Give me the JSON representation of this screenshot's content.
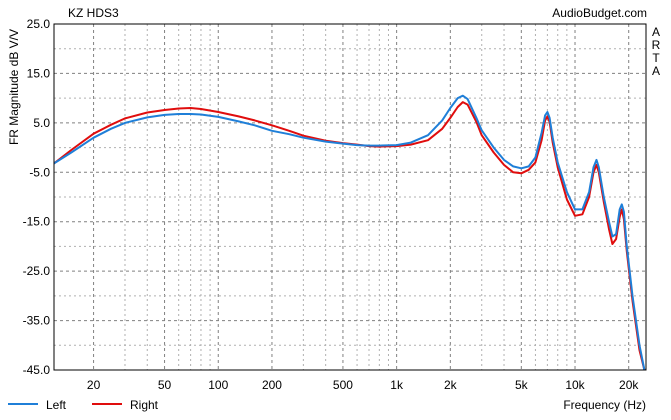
{
  "header": {
    "title": "KZ HDS3",
    "source": "AudioBudget.com",
    "side_label": [
      "A",
      "R",
      "T",
      "A"
    ]
  },
  "chart_data": {
    "type": "line",
    "title": "KZ HDS3",
    "xlabel": "Frequency (Hz)",
    "ylabel": "FR Magnitude dB V/V",
    "x_scale": "log",
    "xlim": [
      12,
      25000
    ],
    "ylim": [
      -45,
      25
    ],
    "grid": true,
    "legend_position": "bottom-left",
    "x_ticks": [
      {
        "value": 20,
        "label": "20"
      },
      {
        "value": 50,
        "label": "50"
      },
      {
        "value": 100,
        "label": "100"
      },
      {
        "value": 200,
        "label": "200"
      },
      {
        "value": 500,
        "label": "500"
      },
      {
        "value": 1000,
        "label": "1k"
      },
      {
        "value": 2000,
        "label": "2k"
      },
      {
        "value": 5000,
        "label": "5k"
      },
      {
        "value": 10000,
        "label": "10k"
      },
      {
        "value": 20000,
        "label": "20k"
      }
    ],
    "y_ticks": [
      {
        "value": 25,
        "label": "25.0"
      },
      {
        "value": 15,
        "label": "15.0"
      },
      {
        "value": 5,
        "label": "5.0"
      },
      {
        "value": -5,
        "label": "-5.0"
      },
      {
        "value": -15,
        "label": "-15.0"
      },
      {
        "value": -25,
        "label": "-25.0"
      },
      {
        "value": -35,
        "label": "-35.0"
      },
      {
        "value": -45,
        "label": "-45.0"
      }
    ],
    "series": [
      {
        "name": "Left",
        "color": "#1f7fd8",
        "points": [
          [
            12,
            -3.2
          ],
          [
            15,
            -1.0
          ],
          [
            20,
            2.0
          ],
          [
            25,
            3.8
          ],
          [
            30,
            5.0
          ],
          [
            40,
            6.1
          ],
          [
            50,
            6.6
          ],
          [
            60,
            6.8
          ],
          [
            70,
            6.8
          ],
          [
            80,
            6.7
          ],
          [
            100,
            6.2
          ],
          [
            130,
            5.3
          ],
          [
            160,
            4.5
          ],
          [
            200,
            3.4
          ],
          [
            250,
            2.7
          ],
          [
            300,
            2.0
          ],
          [
            400,
            1.2
          ],
          [
            500,
            0.8
          ],
          [
            600,
            0.5
          ],
          [
            700,
            0.4
          ],
          [
            800,
            0.4
          ],
          [
            1000,
            0.5
          ],
          [
            1200,
            1.0
          ],
          [
            1500,
            2.5
          ],
          [
            1800,
            5.5
          ],
          [
            2000,
            8.0
          ],
          [
            2200,
            10.0
          ],
          [
            2350,
            10.5
          ],
          [
            2500,
            9.8
          ],
          [
            2800,
            6.0
          ],
          [
            3000,
            3.5
          ],
          [
            3500,
            0.0
          ],
          [
            4000,
            -2.5
          ],
          [
            4500,
            -3.8
          ],
          [
            5000,
            -4.2
          ],
          [
            5500,
            -3.8
          ],
          [
            6000,
            -2.0
          ],
          [
            6500,
            3.0
          ],
          [
            6800,
            6.5
          ],
          [
            7000,
            7.2
          ],
          [
            7200,
            6.0
          ],
          [
            7500,
            2.0
          ],
          [
            8000,
            -3.0
          ],
          [
            9000,
            -9.0
          ],
          [
            10000,
            -12.5
          ],
          [
            11000,
            -12.5
          ],
          [
            12000,
            -9.0
          ],
          [
            12700,
            -4.0
          ],
          [
            13200,
            -2.5
          ],
          [
            13600,
            -4.0
          ],
          [
            14500,
            -10.0
          ],
          [
            15500,
            -15.0
          ],
          [
            16200,
            -18.0
          ],
          [
            17000,
            -17.5
          ],
          [
            17800,
            -12.5
          ],
          [
            18300,
            -11.5
          ],
          [
            18800,
            -13.0
          ],
          [
            19500,
            -20.0
          ],
          [
            21000,
            -30.0
          ],
          [
            23000,
            -40.0
          ],
          [
            24500,
            -45.0
          ]
        ]
      },
      {
        "name": "Right",
        "color": "#e00d0d",
        "points": [
          [
            12,
            -3.2
          ],
          [
            15,
            -0.5
          ],
          [
            20,
            2.8
          ],
          [
            25,
            4.6
          ],
          [
            30,
            5.9
          ],
          [
            40,
            7.1
          ],
          [
            50,
            7.6
          ],
          [
            60,
            7.9
          ],
          [
            70,
            8.0
          ],
          [
            80,
            7.8
          ],
          [
            100,
            7.2
          ],
          [
            130,
            6.3
          ],
          [
            160,
            5.5
          ],
          [
            200,
            4.5
          ],
          [
            250,
            3.4
          ],
          [
            300,
            2.4
          ],
          [
            400,
            1.4
          ],
          [
            500,
            0.9
          ],
          [
            600,
            0.6
          ],
          [
            700,
            0.3
          ],
          [
            800,
            0.2
          ],
          [
            1000,
            0.3
          ],
          [
            1200,
            0.6
          ],
          [
            1500,
            1.5
          ],
          [
            1800,
            3.8
          ],
          [
            2000,
            6.0
          ],
          [
            2200,
            8.2
          ],
          [
            2350,
            9.2
          ],
          [
            2500,
            8.7
          ],
          [
            2800,
            5.2
          ],
          [
            3000,
            2.5
          ],
          [
            3500,
            -1.0
          ],
          [
            4000,
            -3.5
          ],
          [
            4500,
            -5.0
          ],
          [
            5000,
            -5.2
          ],
          [
            5500,
            -4.5
          ],
          [
            6000,
            -3.0
          ],
          [
            6500,
            1.5
          ],
          [
            6800,
            5.5
          ],
          [
            7000,
            6.3
          ],
          [
            7200,
            5.2
          ],
          [
            7500,
            1.0
          ],
          [
            8000,
            -4.0
          ],
          [
            9000,
            -10.5
          ],
          [
            10000,
            -13.8
          ],
          [
            11000,
            -13.5
          ],
          [
            12000,
            -10.0
          ],
          [
            12700,
            -5.0
          ],
          [
            13200,
            -3.5
          ],
          [
            13600,
            -5.0
          ],
          [
            14500,
            -11.0
          ],
          [
            15500,
            -16.5
          ],
          [
            16200,
            -19.5
          ],
          [
            17000,
            -18.5
          ],
          [
            17800,
            -14.0
          ],
          [
            18300,
            -12.5
          ],
          [
            18800,
            -14.5
          ],
          [
            19500,
            -21.0
          ],
          [
            21000,
            -31.0
          ],
          [
            23000,
            -41.0
          ],
          [
            24500,
            -45.0
          ]
        ]
      }
    ]
  }
}
